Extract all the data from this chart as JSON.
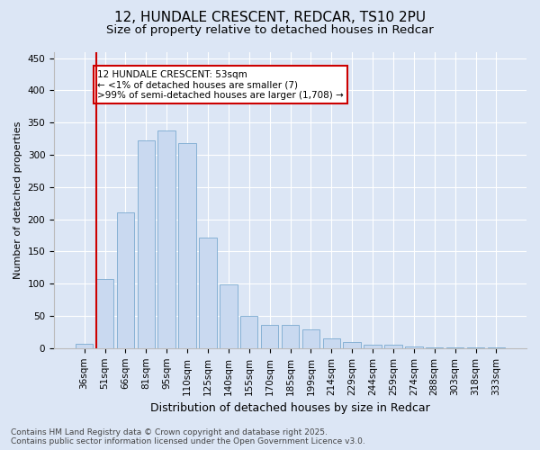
{
  "title1": "12, HUNDALE CRESCENT, REDCAR, TS10 2PU",
  "title2": "Size of property relative to detached houses in Redcar",
  "xlabel": "Distribution of detached houses by size in Redcar",
  "ylabel": "Number of detached properties",
  "categories": [
    "36sqm",
    "51sqm",
    "66sqm",
    "81sqm",
    "95sqm",
    "110sqm",
    "125sqm",
    "140sqm",
    "155sqm",
    "170sqm",
    "185sqm",
    "199sqm",
    "214sqm",
    "229sqm",
    "244sqm",
    "259sqm",
    "274sqm",
    "288sqm",
    "303sqm",
    "318sqm",
    "333sqm"
  ],
  "values": [
    7,
    108,
    211,
    323,
    338,
    318,
    172,
    99,
    50,
    36,
    36,
    29,
    15,
    9,
    5,
    6,
    2,
    1,
    1,
    1,
    1
  ],
  "bar_color": "#c9d9f0",
  "bar_edge_color": "#7aaad0",
  "vline_color": "#cc0000",
  "annotation_text": "12 HUNDALE CRESCENT: 53sqm\n← <1% of detached houses are smaller (7)\n>99% of semi-detached houses are larger (1,708) →",
  "annotation_box_color": "#ffffff",
  "annotation_box_edge_color": "#cc0000",
  "ylim": [
    0,
    460
  ],
  "yticks": [
    0,
    50,
    100,
    150,
    200,
    250,
    300,
    350,
    400,
    450
  ],
  "bg_color": "#dce6f5",
  "plot_bg_color": "#dce6f5",
  "footer_text": "Contains HM Land Registry data © Crown copyright and database right 2025.\nContains public sector information licensed under the Open Government Licence v3.0.",
  "title1_fontsize": 11,
  "title2_fontsize": 9.5,
  "xlabel_fontsize": 9,
  "ylabel_fontsize": 8,
  "tick_fontsize": 7.5,
  "annotation_fontsize": 7.5,
  "footer_fontsize": 6.5
}
